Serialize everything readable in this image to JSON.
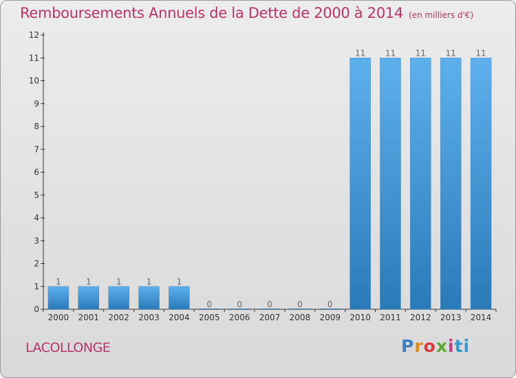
{
  "header": {
    "title": "Remboursements Annuels de la Dette de 2000 à 2014",
    "subtitle": "(en milliers d'€)"
  },
  "footer": {
    "commune": "LACOLLONGE",
    "logo": [
      "P",
      "r",
      "o",
      "x",
      "i",
      "t",
      "i"
    ]
  },
  "colors": {
    "title": "#b8336a",
    "bar_light": "#5eb0ec",
    "bar_dark": "#2a7ab8",
    "axis": "#333333"
  },
  "chart_data": {
    "type": "bar",
    "title": "Remboursements Annuels de la Dette de 2000 à 2014",
    "subtitle": "(en milliers d'€)",
    "categories": [
      "2000",
      "2001",
      "2002",
      "2003",
      "2004",
      "2005",
      "2006",
      "2007",
      "2008",
      "2009",
      "2010",
      "2011",
      "2012",
      "2013",
      "2014"
    ],
    "values": [
      1,
      1,
      1,
      1,
      1,
      0,
      0,
      0,
      0,
      0,
      11,
      11,
      11,
      11,
      11
    ],
    "ylim": [
      0,
      12
    ],
    "yticks": [
      0,
      1,
      2,
      3,
      4,
      5,
      6,
      7,
      8,
      9,
      10,
      11,
      12
    ],
    "xlabel": "",
    "ylabel": "",
    "grid": false,
    "legend": "none"
  }
}
